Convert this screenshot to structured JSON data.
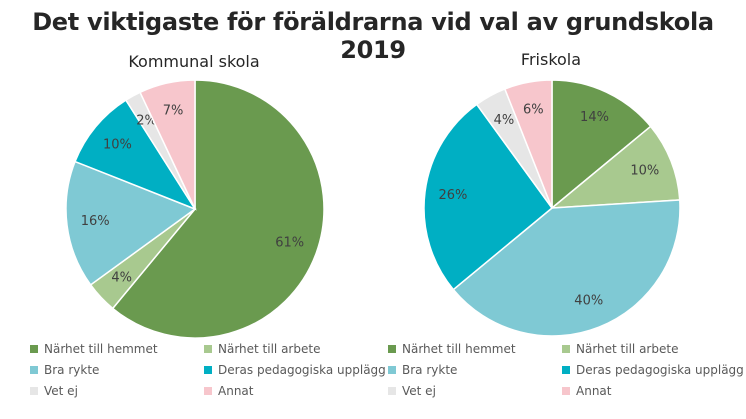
{
  "title": "Det viktigaste för föräldrarna vid val av grundskola 2019",
  "chart_data": [
    {
      "type": "pie",
      "title": "Kommunal skola",
      "legend_position": "bottom",
      "slices": [
        {
          "label": "Närhet till hemmet",
          "value": 61,
          "display": "61%",
          "color": "#6A9A4F"
        },
        {
          "label": "Närhet till arbete",
          "value": 4,
          "display": "4%",
          "color": "#A8C98F"
        },
        {
          "label": "Bra rykte",
          "value": 16,
          "display": "16%",
          "color": "#7FC9D4"
        },
        {
          "label": "Deras pedagogiska upplägg",
          "value": 10,
          "display": "10%",
          "color": "#00AFC3"
        },
        {
          "label": "Vet ej",
          "value": 2,
          "display": "2%",
          "color": "#E6E6E6"
        },
        {
          "label": "Annat",
          "value": 7,
          "display": "7%",
          "color": "#F7C6CC"
        }
      ]
    },
    {
      "type": "pie",
      "title": "Friskola",
      "legend_position": "bottom",
      "slices": [
        {
          "label": "Närhet till hemmet",
          "value": 14,
          "display": "14%",
          "color": "#6A9A4F"
        },
        {
          "label": "Närhet till arbete",
          "value": 10,
          "display": "10%",
          "color": "#A8C98F"
        },
        {
          "label": "Bra rykte",
          "value": 40,
          "display": "40%",
          "color": "#7FC9D4"
        },
        {
          "label": "Deras pedagogiska upplägg",
          "value": 26,
          "display": "26%",
          "color": "#00AFC3"
        },
        {
          "label": "Vet ej",
          "value": 4,
          "display": "4%",
          "color": "#E6E6E6"
        },
        {
          "label": "Annat",
          "value": 6,
          "display": "6%",
          "color": "#F7C6CC"
        }
      ]
    }
  ]
}
